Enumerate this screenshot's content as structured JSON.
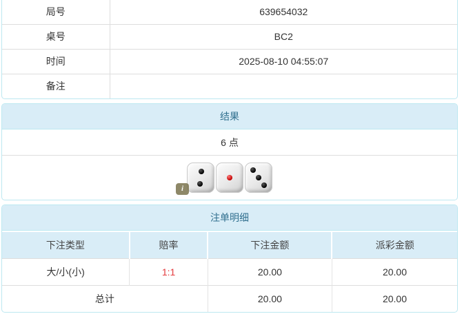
{
  "colors": {
    "panel_border": "#bce8f1",
    "heading_bg": "#d9edf7",
    "heading_text": "#31708f",
    "cell_text": "#333333",
    "row_border": "#dddddd",
    "odds_red": "#e4393c"
  },
  "game_info": {
    "rows": [
      {
        "label": "局号",
        "value": "639654032"
      },
      {
        "label": "桌号",
        "value": "BC2"
      },
      {
        "label": "时间",
        "value": "2025-08-10 04:55:07"
      },
      {
        "label": "备注",
        "value": ""
      }
    ]
  },
  "result": {
    "heading": "结果",
    "points": "6 点",
    "dice": [
      2,
      1,
      3
    ],
    "info_badge_label": "i"
  },
  "bet_details": {
    "heading": "注单明细",
    "columns": [
      "下注类型",
      "赔率",
      "下注金额",
      "派彩金额"
    ],
    "rows": [
      {
        "type": "大/小(小)",
        "odds": "1:1",
        "bet_amount": "20.00",
        "payout": "20.00"
      }
    ],
    "total": {
      "label": "总计",
      "bet_amount": "20.00",
      "payout": "20.00"
    }
  }
}
